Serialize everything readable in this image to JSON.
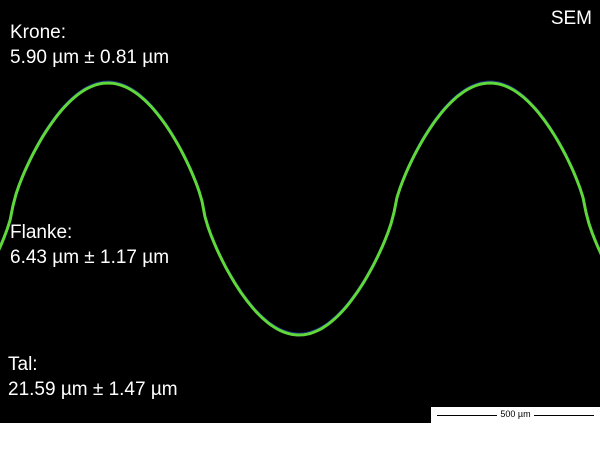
{
  "corner_label": "SEM",
  "measurements": [
    {
      "name": "Krone:",
      "value": "5.90 µm ± 0.81 µm"
    },
    {
      "name": "Flanke:",
      "value": "6.43 µm ± 1.17 µm"
    },
    {
      "name": "Tal:",
      "value": "21.59 µm ± 1.47 µm"
    }
  ],
  "scale_bar": "500 µm",
  "colors": {
    "background": "#000000",
    "profile": "#5fd83a",
    "profile_shadow": "#1e3cff"
  }
}
